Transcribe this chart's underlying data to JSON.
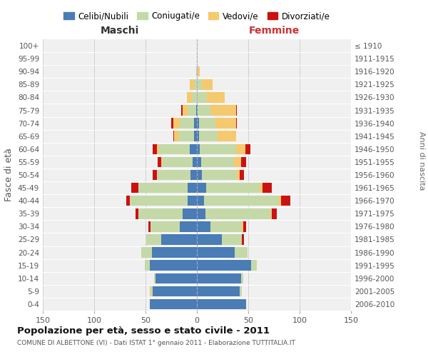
{
  "age_groups": [
    "0-4",
    "5-9",
    "10-14",
    "15-19",
    "20-24",
    "25-29",
    "30-34",
    "35-39",
    "40-44",
    "45-49",
    "50-54",
    "55-59",
    "60-64",
    "65-69",
    "70-74",
    "75-79",
    "80-84",
    "85-89",
    "90-94",
    "95-99",
    "100+"
  ],
  "birth_years": [
    "2006-2010",
    "2001-2005",
    "1996-2000",
    "1991-1995",
    "1986-1990",
    "1981-1985",
    "1976-1980",
    "1971-1975",
    "1966-1970",
    "1961-1965",
    "1956-1960",
    "1951-1955",
    "1946-1950",
    "1941-1945",
    "1936-1940",
    "1931-1935",
    "1926-1930",
    "1921-1925",
    "1916-1920",
    "1911-1915",
    "≤ 1910"
  ],
  "colors": {
    "celibe": "#4a7cb5",
    "coniugato": "#c5d9a8",
    "vedovo": "#f5c96e",
    "divorziato": "#cc1111"
  },
  "maschi": {
    "celibe": [
      46,
      43,
      40,
      46,
      44,
      35,
      17,
      14,
      9,
      9,
      6,
      4,
      7,
      3,
      3,
      1,
      0,
      0,
      0,
      0,
      0
    ],
    "coniugato": [
      0,
      2,
      2,
      5,
      10,
      14,
      28,
      43,
      56,
      48,
      33,
      30,
      30,
      15,
      14,
      8,
      5,
      3,
      1,
      0,
      0
    ],
    "vedovo": [
      0,
      1,
      0,
      0,
      0,
      0,
      0,
      0,
      0,
      0,
      0,
      1,
      2,
      4,
      6,
      5,
      5,
      4,
      0,
      0,
      0
    ],
    "divorziato": [
      0,
      0,
      0,
      0,
      0,
      0,
      2,
      3,
      4,
      7,
      4,
      3,
      4,
      1,
      2,
      1,
      0,
      0,
      0,
      0,
      0
    ]
  },
  "femmine": {
    "nubile": [
      48,
      42,
      43,
      53,
      37,
      24,
      13,
      8,
      7,
      9,
      5,
      4,
      3,
      2,
      2,
      1,
      0,
      0,
      0,
      0,
      0
    ],
    "coniugata": [
      0,
      2,
      2,
      5,
      12,
      20,
      31,
      64,
      73,
      52,
      34,
      32,
      35,
      18,
      16,
      12,
      10,
      5,
      1,
      0,
      0
    ],
    "vedova": [
      0,
      0,
      0,
      0,
      0,
      0,
      1,
      1,
      2,
      3,
      3,
      7,
      9,
      18,
      20,
      25,
      17,
      10,
      2,
      1,
      0
    ],
    "divorziata": [
      0,
      0,
      0,
      0,
      0,
      2,
      3,
      5,
      9,
      9,
      4,
      5,
      5,
      0,
      1,
      1,
      0,
      0,
      0,
      0,
      0
    ]
  },
  "xlim": 150,
  "title": "Popolazione per età, sesso e stato civile - 2011",
  "subtitle": "COMUNE DI ALBETTONE (VI) - Dati ISTAT 1° gennaio 2011 - Elaborazione TUTTITALIA.IT",
  "xlabel_left": "Maschi",
  "xlabel_right": "Femmine",
  "ylabel": "Fasce di età",
  "ylabel_right": "Anni di nascita",
  "legend": [
    "Celibi/Nubili",
    "Coniugati/e",
    "Vedovi/e",
    "Divorziati/e"
  ],
  "bg_color": "#f0f0f0"
}
